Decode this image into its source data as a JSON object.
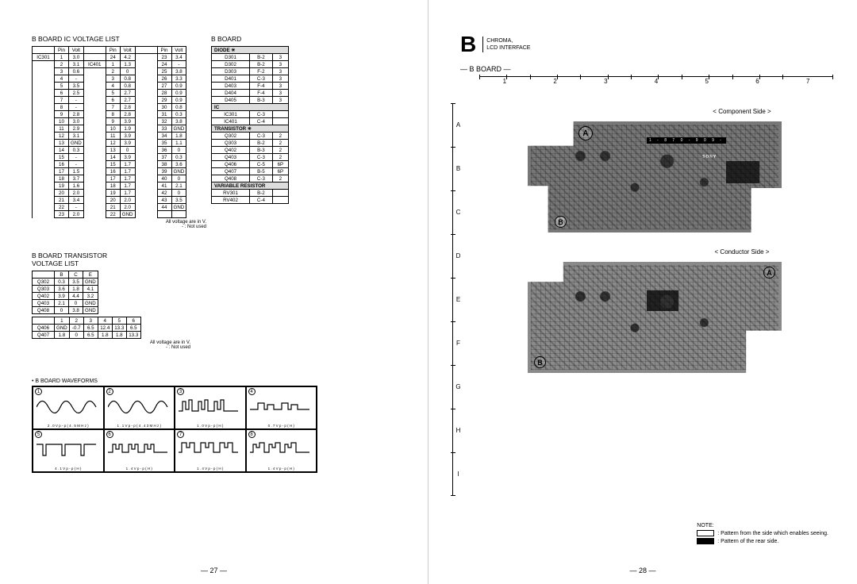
{
  "left": {
    "icVoltageTitle": "B BOARD IC VOLTAGE LIST",
    "transVoltageTitle": "B BOARD TRANSISTOR\nVOLTAGE LIST",
    "bBoardTitle": "B BOARD",
    "waveformsTitle": "• B BOARD WAVEFORMS",
    "voltNote": "All voltage are in V.\n- : Not used",
    "pageNum": "— 27 —",
    "icTable": {
      "headers": [
        "",
        "Pin",
        "Volt",
        "",
        "Pin",
        "Volt",
        "",
        "Pin",
        "Volt"
      ],
      "rows": [
        [
          "IC301",
          "1",
          "3.0",
          "",
          "24",
          "4.2",
          "",
          "23",
          "3.4"
        ],
        [
          "",
          "2",
          "3.1",
          "IC401",
          "1",
          "1.3",
          "",
          "24",
          "-"
        ],
        [
          "",
          "3",
          "0.6",
          "",
          "2",
          "0",
          "",
          "25",
          "3.8"
        ],
        [
          "",
          "4",
          "-",
          "",
          "3",
          "0.8",
          "",
          "26",
          "3.3"
        ],
        [
          "",
          "5",
          "3.5",
          "",
          "4",
          "0.8",
          "",
          "27",
          "0.9"
        ],
        [
          "",
          "6",
          "2.5",
          "",
          "5",
          "2.7",
          "",
          "28",
          "0.9"
        ],
        [
          "",
          "7",
          "-",
          "",
          "6",
          "2.7",
          "",
          "29",
          "0.9"
        ],
        [
          "",
          "8",
          "-",
          "",
          "7",
          "2.8",
          "",
          "30",
          "0.8"
        ],
        [
          "",
          "9",
          "2.8",
          "",
          "8",
          "2.8",
          "",
          "31",
          "0.3"
        ],
        [
          "",
          "10",
          "3.0",
          "",
          "9",
          "3.9",
          "",
          "32",
          "3.8"
        ],
        [
          "",
          "11",
          "2.9",
          "",
          "10",
          "1.9",
          "",
          "33",
          "GND"
        ],
        [
          "",
          "12",
          "3.1",
          "",
          "11",
          "3.9",
          "",
          "34",
          "1.8"
        ],
        [
          "",
          "13",
          "GND",
          "",
          "12",
          "3.9",
          "",
          "35",
          "1.1"
        ],
        [
          "",
          "14",
          "0.3",
          "",
          "13",
          "0",
          "",
          "36",
          "0"
        ],
        [
          "",
          "15",
          "-",
          "",
          "14",
          "3.9",
          "",
          "37",
          "0.3"
        ],
        [
          "",
          "16",
          "-",
          "",
          "15",
          "1.7",
          "",
          "38",
          "3.6"
        ],
        [
          "",
          "17",
          "1.5",
          "",
          "16",
          "1.7",
          "",
          "39",
          "GND"
        ],
        [
          "",
          "18",
          "3.7",
          "",
          "17",
          "1.7",
          "",
          "40",
          "0"
        ],
        [
          "",
          "19",
          "1.6",
          "",
          "18",
          "1.7",
          "",
          "41",
          "2.1"
        ],
        [
          "",
          "20",
          "2.0",
          "",
          "19",
          "1.7",
          "",
          "42",
          "0"
        ],
        [
          "",
          "21",
          "3.4",
          "",
          "20",
          "2.0",
          "",
          "43",
          "3.5"
        ],
        [
          "",
          "22",
          "-",
          "",
          "21",
          "2.0",
          "",
          "44",
          "GND"
        ],
        [
          "",
          "23",
          "2.0",
          "",
          "22",
          "GND",
          "",
          "",
          ""
        ]
      ]
    },
    "transTable1": {
      "headers": [
        "",
        "B",
        "C",
        "E"
      ],
      "rows": [
        [
          "Q302",
          "0.3",
          "3.5",
          "GND"
        ],
        [
          "Q303",
          "3.6",
          "1.8",
          "4.1"
        ],
        [
          "Q402",
          "3.9",
          "4.4",
          "3.2"
        ],
        [
          "Q403",
          "2.1",
          "0",
          "GND"
        ],
        [
          "Q408",
          "0",
          "3.8",
          "GND"
        ]
      ]
    },
    "transTable2": {
      "headers": [
        "",
        "1",
        "2",
        "3",
        "4",
        "5",
        "6"
      ],
      "rows": [
        [
          "Q406",
          "GND",
          "-0.7",
          "6.5",
          "12.4",
          "13.3",
          "6.5"
        ],
        [
          "Q407",
          "1.8",
          "0",
          "6.5",
          "1.8",
          "1.8",
          "13.3"
        ]
      ]
    },
    "compTable": {
      "sections": [
        {
          "title": "DIODE",
          "star": true,
          "rows": [
            [
              "D301",
              "B-2",
              "3"
            ],
            [
              "D302",
              "B-2",
              "3"
            ],
            [
              "D303",
              "F-2",
              "3"
            ],
            [
              "D401",
              "C-3",
              "3"
            ],
            [
              "D403",
              "F-4",
              "3"
            ],
            [
              "D404",
              "F-4",
              "3"
            ],
            [
              "D405",
              "B-3",
              "3"
            ]
          ]
        },
        {
          "title": "IC",
          "star": false,
          "rows": [
            [
              "IC301",
              "C-3",
              ""
            ],
            [
              "IC401",
              "C-4",
              ""
            ]
          ]
        },
        {
          "title": "TRANSISTOR",
          "star": true,
          "rows": [
            [
              "Q302",
              "C-3",
              "2"
            ],
            [
              "Q303",
              "B-2",
              "2"
            ],
            [
              "Q402",
              "B-3",
              "2"
            ],
            [
              "Q403",
              "C-3",
              "2"
            ],
            [
              "Q406",
              "C-5",
              "6P"
            ],
            [
              "Q407",
              "B-5",
              "6P"
            ],
            [
              "Q408",
              "C-3",
              "2"
            ]
          ]
        },
        {
          "title": "VARIABLE\nRESISTOR",
          "star": false,
          "rows": [
            [
              "RV301",
              "B-2",
              ""
            ],
            [
              "RV402",
              "C-4",
              ""
            ]
          ]
        }
      ]
    },
    "waveCaptions": [
      "2 . 0 V p - p   ( 4 . 5 M H z )",
      "1 . 1 V p - p   ( 4 . 4 3 M H z )",
      "1 . 0 V p - p   ( H )",
      "0 . 7 V p - p   ( H )",
      "4 . 1 V p - p   ( H )",
      "1 . 4 V p - p   ( H )",
      "1 . 4 V p - p   ( H )",
      "1 . 4 V p - p   ( H )"
    ]
  },
  "right": {
    "bigB": "B",
    "bracketLines": [
      "CHROMA,",
      "LCD INTERFACE"
    ],
    "boardTitle": "— B BOARD —",
    "cols": [
      "1",
      "2",
      "3",
      "4",
      "5",
      "6",
      "7"
    ],
    "rows": [
      "A",
      "B",
      "C",
      "D",
      "E",
      "F",
      "G",
      "H",
      "I"
    ],
    "componentSide": "< Component Side >",
    "conductorSide": "< Conductor Side >",
    "pcbLabel": "1 - 8 7 0 - 9 0 9 - ",
    "pcbBrand": "SONY",
    "noteTitle": "NOTE:",
    "noteWhite": ": Pattern from the side which enables seeing.",
    "noteBlack": ": Pattern of the rear side.",
    "pageNum": "— 28 —",
    "colors": {
      "white": "#ffffff",
      "black": "#000000"
    }
  }
}
